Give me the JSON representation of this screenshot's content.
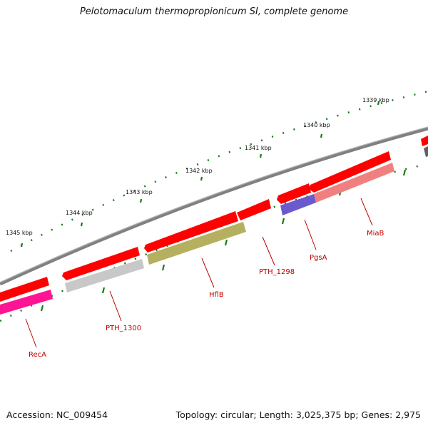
{
  "title": "Pelotomaculum thermopropionicum SI, complete genome",
  "footer": {
    "accession": "Accession: NC_009454",
    "summary": "Topology: circular; Length: 3,025,375 bp; Genes: 2,975"
  },
  "ticks": [
    {
      "label": "1339 kbp"
    },
    {
      "label": "1340 kbp"
    },
    {
      "label": "1341 kbp"
    },
    {
      "label": "1342 kbp"
    },
    {
      "label": "1343 kbp"
    },
    {
      "label": "1344 kbp"
    },
    {
      "label": "1345 kbp"
    }
  ],
  "genes": [
    {
      "label": "MiaB",
      "color": "#f08080"
    },
    {
      "label": "PgsA",
      "color": "#6a5acd"
    },
    {
      "label": "PTH_1298",
      "color": "#ff0000"
    },
    {
      "label": "HflB",
      "color": "#b5b060"
    },
    {
      "label": "PTH_1300",
      "color": "#c8c8c8"
    },
    {
      "label": "RecA",
      "color": "#ff1493"
    }
  ],
  "colors": {
    "backbone": "#808080",
    "cds": "#ff0000",
    "tick": "#1a7a1a",
    "gene_label": "#c00000"
  }
}
